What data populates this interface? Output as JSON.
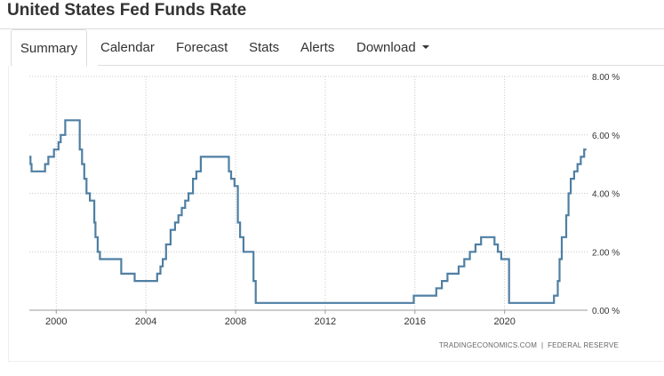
{
  "header": {
    "title": "United States Fed Funds Rate"
  },
  "tabs": [
    {
      "label": "Summary",
      "active": true
    },
    {
      "label": "Calendar"
    },
    {
      "label": "Forecast"
    },
    {
      "label": "Stats"
    },
    {
      "label": "Alerts"
    },
    {
      "label": "Download",
      "dropdown": true
    }
  ],
  "credit": {
    "source_site": "TRADINGECONOMICS.COM",
    "separator": "|",
    "source_org": "FEDERAL RESERVE"
  },
  "chart_data": {
    "type": "line",
    "title": "",
    "xlabel": "",
    "ylabel": "",
    "series_color": "#4f7fa3",
    "grid": true,
    "grid_style": "dotted",
    "y_axis_position": "right",
    "x_ticks": [
      "2000",
      "2004",
      "2008",
      "2012",
      "2016",
      "2020"
    ],
    "y_ticks": [
      "0.00 %",
      "2.00 %",
      "4.00 %",
      "6.00 %",
      "8.00 %"
    ],
    "xlim": [
      1998.8,
      2023.7
    ],
    "ylim": [
      0,
      8
    ],
    "series": [
      {
        "step": true,
        "points": [
          [
            1998.8,
            5.25
          ],
          [
            1998.85,
            5.0
          ],
          [
            1998.9,
            4.75
          ],
          [
            1999.5,
            5.0
          ],
          [
            1999.65,
            5.25
          ],
          [
            1999.9,
            5.5
          ],
          [
            2000.1,
            5.75
          ],
          [
            2000.2,
            6.0
          ],
          [
            2000.4,
            6.5
          ],
          [
            2001.05,
            5.5
          ],
          [
            2001.15,
            5.0
          ],
          [
            2001.25,
            4.5
          ],
          [
            2001.35,
            4.0
          ],
          [
            2001.5,
            3.75
          ],
          [
            2001.7,
            3.0
          ],
          [
            2001.75,
            2.5
          ],
          [
            2001.85,
            2.0
          ],
          [
            2001.95,
            1.75
          ],
          [
            2002.9,
            1.25
          ],
          [
            2003.5,
            1.0
          ],
          [
            2004.5,
            1.25
          ],
          [
            2004.65,
            1.5
          ],
          [
            2004.75,
            1.75
          ],
          [
            2004.9,
            2.25
          ],
          [
            2005.1,
            2.75
          ],
          [
            2005.3,
            3.0
          ],
          [
            2005.45,
            3.25
          ],
          [
            2005.6,
            3.5
          ],
          [
            2005.75,
            3.75
          ],
          [
            2005.9,
            4.0
          ],
          [
            2006.1,
            4.5
          ],
          [
            2006.25,
            4.75
          ],
          [
            2006.45,
            5.25
          ],
          [
            2007.7,
            4.75
          ],
          [
            2007.8,
            4.5
          ],
          [
            2007.95,
            4.25
          ],
          [
            2008.1,
            3.0
          ],
          [
            2008.2,
            2.5
          ],
          [
            2008.35,
            2.0
          ],
          [
            2008.8,
            1.0
          ],
          [
            2008.9,
            0.25
          ],
          [
            2015.95,
            0.5
          ],
          [
            2016.95,
            0.75
          ],
          [
            2017.2,
            1.0
          ],
          [
            2017.45,
            1.25
          ],
          [
            2017.95,
            1.5
          ],
          [
            2018.2,
            1.75
          ],
          [
            2018.45,
            2.0
          ],
          [
            2018.7,
            2.25
          ],
          [
            2018.95,
            2.5
          ],
          [
            2019.55,
            2.25
          ],
          [
            2019.7,
            2.0
          ],
          [
            2019.85,
            1.75
          ],
          [
            2020.2,
            0.25
          ],
          [
            2022.2,
            0.5
          ],
          [
            2022.37,
            1.0
          ],
          [
            2022.45,
            1.75
          ],
          [
            2022.55,
            2.5
          ],
          [
            2022.75,
            3.25
          ],
          [
            2022.85,
            4.0
          ],
          [
            2022.95,
            4.5
          ],
          [
            2023.1,
            4.75
          ],
          [
            2023.25,
            5.0
          ],
          [
            2023.4,
            5.25
          ],
          [
            2023.55,
            5.5
          ],
          [
            2023.65,
            5.5
          ]
        ]
      }
    ]
  }
}
